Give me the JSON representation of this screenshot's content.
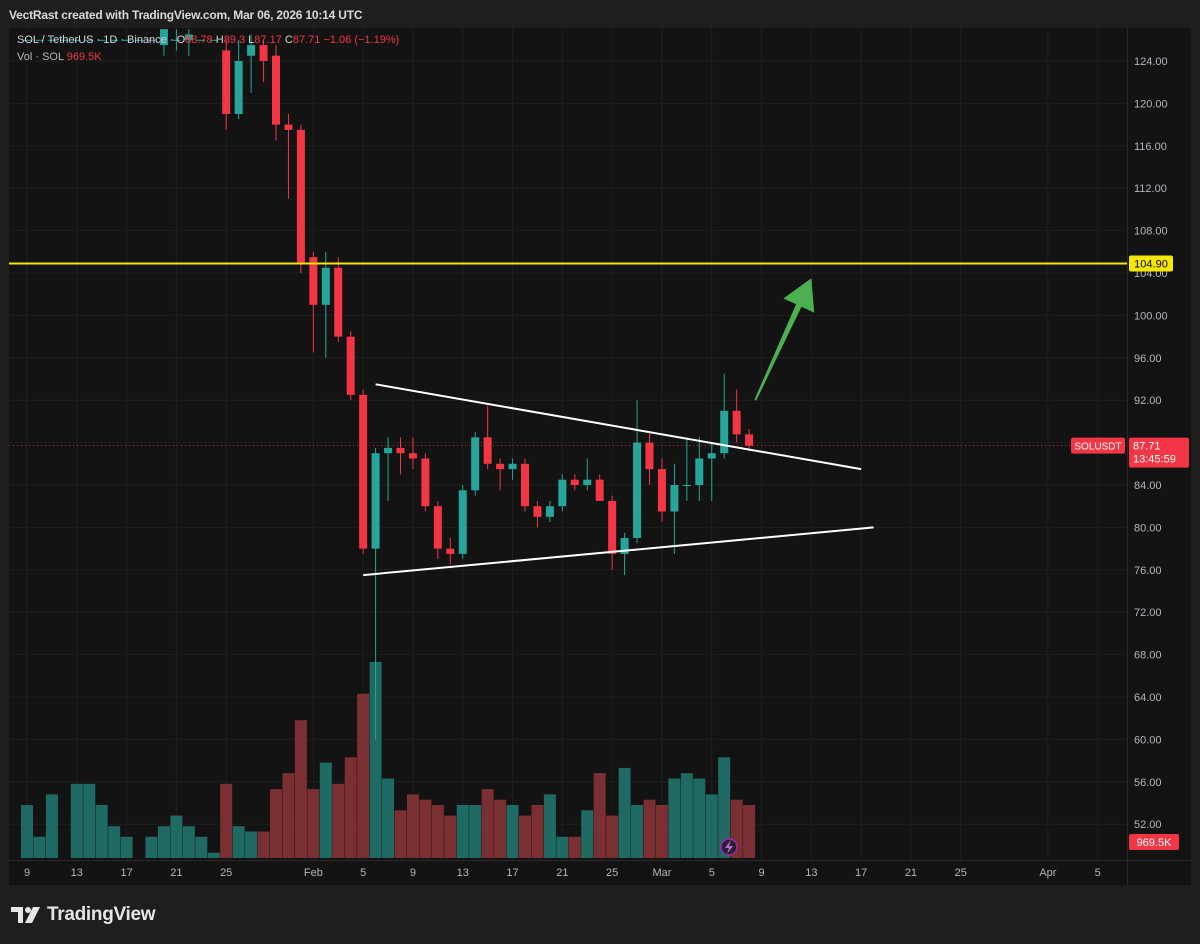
{
  "header": {
    "attribution": "VectRast created with TradingView.com, Mar 06, 2026 10:14 UTC"
  },
  "legend": {
    "symbol_line": "SOL / TetherUS · 1D · Binance ·",
    "o_label": "O",
    "o_value": "88.78",
    "h_label": "H",
    "h_value": "89.3",
    "l_label": "L",
    "l_value": "87.17",
    "c_label": "C",
    "c_value": "87.71",
    "change": "−1.06 (−1.19%)",
    "vol_line": "Vol · SOL",
    "vol_value": "969.5K"
  },
  "footer": {
    "logo_text": "TradingView"
  },
  "colors": {
    "up": "#26a69a",
    "down": "#f23645",
    "vol_up": "#1f6b63",
    "vol_down": "#7b2f32",
    "resistance": "#f5e700",
    "pattern_lines": "#ffffff",
    "arrow": "#4caf50",
    "price_label": "#f23645",
    "grid": "#1f1f1f",
    "axis_text": "#b2b5be"
  },
  "chart_data": {
    "type": "candlestick",
    "symbol": "SOL / TetherUS",
    "interval": "1D",
    "exchange": "Binance",
    "y_axis": {
      "ylim": [
        50,
        127
      ],
      "ticks": [
        "124.00",
        "120.00",
        "116.00",
        "112.00",
        "108.00",
        "104.00",
        "100.00",
        "96.00",
        "92.00",
        "88.00",
        "84.00",
        "80.00",
        "76.00",
        "72.00",
        "68.00",
        "64.00",
        "60.00",
        "56.00",
        "52.00"
      ]
    },
    "x_axis": {
      "ticks": [
        {
          "label": "9",
          "i": 0
        },
        {
          "label": "13",
          "i": 4
        },
        {
          "label": "17",
          "i": 8
        },
        {
          "label": "21",
          "i": 12
        },
        {
          "label": "25",
          "i": 16
        },
        {
          "label": "Feb",
          "i": 23
        },
        {
          "label": "5",
          "i": 27
        },
        {
          "label": "9",
          "i": 31
        },
        {
          "label": "13",
          "i": 35
        },
        {
          "label": "17",
          "i": 39
        },
        {
          "label": "21",
          "i": 43
        },
        {
          "label": "25",
          "i": 47
        },
        {
          "label": "Mar",
          "i": 51
        },
        {
          "label": "5",
          "i": 55
        },
        {
          "label": "9",
          "i": 59
        },
        {
          "label": "13",
          "i": 63
        },
        {
          "label": "17",
          "i": 67
        },
        {
          "label": "21",
          "i": 71
        },
        {
          "label": "25",
          "i": 75
        },
        {
          "label": "Apr",
          "i": 82
        },
        {
          "label": "5",
          "i": 86
        }
      ]
    },
    "candles": [
      {
        "o": 126,
        "h": 126,
        "l": 126,
        "c": 126,
        "v": 55
      },
      {
        "o": 126,
        "h": 126,
        "l": 126,
        "c": 126,
        "v": 52
      },
      {
        "o": 126,
        "h": 126,
        "l": 126,
        "c": 126,
        "v": 56
      },
      {
        "o": 126,
        "h": 126,
        "l": 126,
        "c": 126,
        "v": 50
      },
      {
        "o": 126,
        "h": 126,
        "l": 126,
        "c": 126,
        "v": 57
      },
      {
        "o": 126,
        "h": 126,
        "l": 126,
        "c": 126,
        "v": 57
      },
      {
        "o": 126,
        "h": 126,
        "l": 126,
        "c": 126,
        "v": 55
      },
      {
        "o": 126,
        "h": 126,
        "l": 126,
        "c": 126,
        "v": 53
      },
      {
        "o": 126,
        "h": 126,
        "l": 126,
        "c": 126,
        "v": 52
      },
      {
        "o": 126,
        "h": 126,
        "l": 126,
        "c": 126,
        "v": 50
      },
      {
        "o": 126,
        "h": 126,
        "l": 126,
        "c": 126,
        "v": 52
      },
      {
        "o": 125.5,
        "h": 127,
        "l": 124.5,
        "c": 127,
        "v": 53
      },
      {
        "o": 126,
        "h": 127,
        "l": 125,
        "c": 126,
        "v": 54
      },
      {
        "o": 126,
        "h": 127,
        "l": 124.5,
        "c": 126.5,
        "v": 53
      },
      {
        "o": 126,
        "h": 126,
        "l": 126,
        "c": 126,
        "v": 52
      },
      {
        "o": 126,
        "h": 126,
        "l": 126,
        "c": 126,
        "v": 50.5
      },
      {
        "o": 125,
        "h": 126,
        "l": 117.5,
        "c": 119,
        "v": 57
      },
      {
        "o": 119,
        "h": 126,
        "l": 118.5,
        "c": 124,
        "v": 53
      },
      {
        "o": 124.5,
        "h": 126.5,
        "l": 121,
        "c": 125.5,
        "v": 52.5
      },
      {
        "o": 125.5,
        "h": 126,
        "l": 122,
        "c": 124,
        "v": 52.5
      },
      {
        "o": 124.5,
        "h": 125.5,
        "l": 116.5,
        "c": 118,
        "v": 56.5
      },
      {
        "o": 118,
        "h": 119,
        "l": 111,
        "c": 117.5,
        "v": 58
      },
      {
        "o": 117.5,
        "h": 118,
        "l": 104,
        "c": 105,
        "v": 63
      },
      {
        "o": 105.5,
        "h": 106,
        "l": 96.5,
        "c": 101,
        "v": 56.5
      },
      {
        "o": 101,
        "h": 106,
        "l": 96,
        "c": 104.5,
        "v": 59
      },
      {
        "o": 104.5,
        "h": 105.5,
        "l": 97.5,
        "c": 98,
        "v": 57
      },
      {
        "o": 98,
        "h": 98.5,
        "l": 92,
        "c": 92.5,
        "v": 59.5
      },
      {
        "o": 92.5,
        "h": 93,
        "l": 77.5,
        "c": 78,
        "v": 65.5
      },
      {
        "o": 78,
        "h": 87.5,
        "l": 60,
        "c": 87,
        "v": 68.5
      },
      {
        "o": 87,
        "h": 88.5,
        "l": 82.5,
        "c": 87.5,
        "v": 57.5
      },
      {
        "o": 87.5,
        "h": 88.5,
        "l": 85,
        "c": 87,
        "v": 54.5
      },
      {
        "o": 87,
        "h": 88.5,
        "l": 85.5,
        "c": 86.5,
        "v": 56
      },
      {
        "o": 86.5,
        "h": 87,
        "l": 81.5,
        "c": 82,
        "v": 55.5
      },
      {
        "o": 82,
        "h": 82.5,
        "l": 77,
        "c": 78,
        "v": 55
      },
      {
        "o": 78,
        "h": 79,
        "l": 76.5,
        "c": 77.5,
        "v": 54
      },
      {
        "o": 77.5,
        "h": 84,
        "l": 77,
        "c": 83.5,
        "v": 55
      },
      {
        "o": 83.5,
        "h": 89,
        "l": 83,
        "c": 88.5,
        "v": 55
      },
      {
        "o": 88.5,
        "h": 91.5,
        "l": 85.5,
        "c": 86,
        "v": 56.5
      },
      {
        "o": 86,
        "h": 86.5,
        "l": 83.5,
        "c": 85.5,
        "v": 55.5
      },
      {
        "o": 85.5,
        "h": 86.5,
        "l": 84.5,
        "c": 86,
        "v": 55
      },
      {
        "o": 86,
        "h": 86.5,
        "l": 81.5,
        "c": 82,
        "v": 54
      },
      {
        "o": 82,
        "h": 82.5,
        "l": 80,
        "c": 81,
        "v": 55
      },
      {
        "o": 81,
        "h": 82.5,
        "l": 80.5,
        "c": 82,
        "v": 56
      },
      {
        "o": 82,
        "h": 85,
        "l": 81.5,
        "c": 84.5,
        "v": 52
      },
      {
        "o": 84.5,
        "h": 85,
        "l": 83.5,
        "c": 84,
        "v": 52
      },
      {
        "o": 84,
        "h": 86.5,
        "l": 83.5,
        "c": 84.5,
        "v": 54.5
      },
      {
        "o": 84.5,
        "h": 85,
        "l": 82.5,
        "c": 82.5,
        "v": 58
      },
      {
        "o": 82.5,
        "h": 83,
        "l": 76,
        "c": 77.5,
        "v": 54
      },
      {
        "o": 77.5,
        "h": 79.5,
        "l": 75.5,
        "c": 79,
        "v": 58.5
      },
      {
        "o": 79,
        "h": 92,
        "l": 78.5,
        "c": 88,
        "v": 55
      },
      {
        "o": 88,
        "h": 89,
        "l": 84,
        "c": 85.5,
        "v": 55.5
      },
      {
        "o": 85.5,
        "h": 86.5,
        "l": 80.5,
        "c": 81.5,
        "v": 55
      },
      {
        "o": 81.5,
        "h": 86,
        "l": 77.5,
        "c": 84,
        "v": 57.5
      },
      {
        "o": 84,
        "h": 88.5,
        "l": 82.5,
        "c": 84,
        "v": 58
      },
      {
        "o": 84,
        "h": 88.5,
        "l": 82.5,
        "c": 86.5,
        "v": 57.5
      },
      {
        "o": 86.5,
        "h": 88,
        "l": 82.5,
        "c": 87,
        "v": 56
      },
      {
        "o": 87,
        "h": 94.5,
        "l": 86.5,
        "c": 91,
        "v": 59.5
      },
      {
        "o": 91,
        "h": 93,
        "l": 88,
        "c": 88.78,
        "v": 55.5
      },
      {
        "o": 88.78,
        "h": 89.3,
        "l": 87.17,
        "c": 87.71,
        "v": 55
      }
    ],
    "horizontal_line": {
      "price": 104.9,
      "label": "104.90"
    },
    "trendlines": [
      {
        "from": {
          "i": 28,
          "p": 93.5
        },
        "to": {
          "i": 67,
          "p": 85.5
        }
      },
      {
        "from": {
          "i": 27,
          "p": 75.5
        },
        "to": {
          "i": 68,
          "p": 80.0
        }
      }
    ],
    "arrow": {
      "from": {
        "i": 58.5,
        "p": 92.0
      },
      "to": {
        "i": 63,
        "p": 103.5
      }
    },
    "last_price": {
      "price": 87.71,
      "symbol": "SOLUSDT",
      "value": "87.71",
      "countdown": "13:45:59"
    },
    "volume_label": "969.5K"
  }
}
